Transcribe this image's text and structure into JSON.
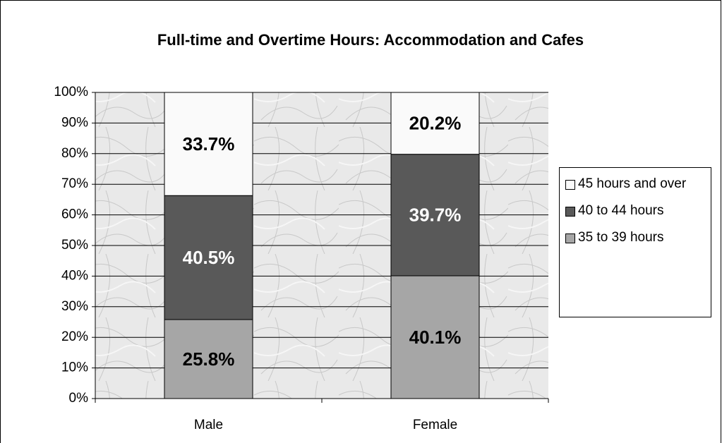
{
  "chart_data": {
    "type": "stacked_bar",
    "title": "Full-time and Overtime Hours: Accommodation and Cafes",
    "categories": [
      "Male",
      "Female"
    ],
    "series": [
      {
        "name": "35 to 39 hours",
        "color": "#a6a6a6",
        "label_color": "#000000",
        "values": [
          25.8,
          40.1
        ],
        "value_labels": [
          "25.8%",
          "40.1%"
        ]
      },
      {
        "name": "40 to 44 hours",
        "color": "#595959",
        "label_color": "#ffffff",
        "values": [
          40.5,
          39.7
        ],
        "value_labels": [
          "40.5%",
          "39.7%"
        ]
      },
      {
        "name": "45 hours and over",
        "color": "#fafafa",
        "label_color": "#000000",
        "values": [
          33.7,
          20.2
        ],
        "value_labels": [
          "33.7%",
          "20.2%"
        ]
      }
    ],
    "ylim": [
      0,
      100
    ],
    "yticks": [
      {
        "value": 0,
        "label": "0%"
      },
      {
        "value": 10,
        "label": "10%"
      },
      {
        "value": 20,
        "label": "20%"
      },
      {
        "value": 30,
        "label": "30%"
      },
      {
        "value": 40,
        "label": "40%"
      },
      {
        "value": 50,
        "label": "50%"
      },
      {
        "value": 60,
        "label": "60%"
      },
      {
        "value": 70,
        "label": "70%"
      },
      {
        "value": 80,
        "label": "80%"
      },
      {
        "value": 90,
        "label": "90%"
      },
      {
        "value": 100,
        "label": "100%"
      }
    ],
    "grid": true,
    "legend": "right"
  }
}
